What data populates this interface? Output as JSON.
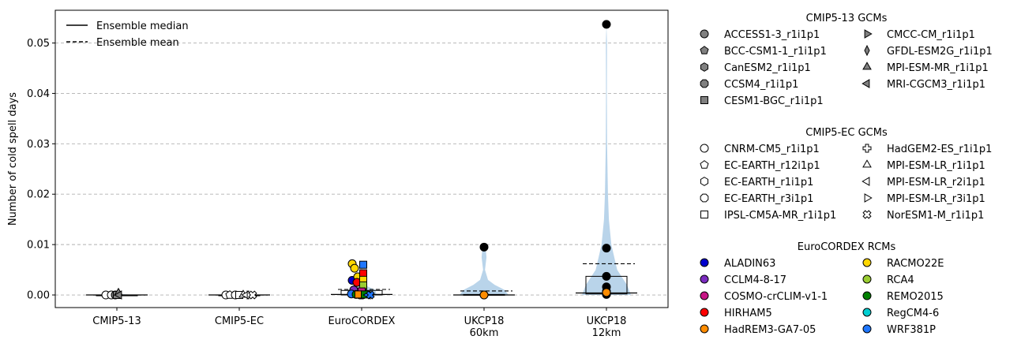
{
  "chart_data": {
    "type": "violin",
    "ylabel": "Number of cold spell days",
    "ylim": [
      -0.0025,
      0.0565
    ],
    "yticks": [
      0.0,
      0.01,
      0.02,
      0.03,
      0.04,
      0.05
    ],
    "ytick_labels": [
      "0.00",
      "0.01",
      "0.02",
      "0.03",
      "0.04",
      "0.05"
    ],
    "grid": "y-dashed",
    "categories": [
      {
        "label": [
          "CMIP5-13"
        ]
      },
      {
        "label": [
          "CMIP5-EC"
        ]
      },
      {
        "label": [
          "EuroCORDEX"
        ]
      },
      {
        "label": [
          "UKCP18",
          "60km"
        ]
      },
      {
        "label": [
          "UKCP18",
          "12km"
        ]
      }
    ],
    "violins": [
      {
        "category": 0,
        "profile": [
          [
            0,
            0.4
          ],
          [
            0.0002,
            0.0
          ]
        ]
      },
      {
        "category": 1,
        "profile": [
          [
            0,
            0.4
          ],
          [
            0.0002,
            0.0
          ]
        ]
      },
      {
        "category": 2,
        "profile": [
          [
            0,
            0.3
          ],
          [
            0.001,
            0.28
          ],
          [
            0.002,
            0.05
          ],
          [
            0.004,
            0.02
          ],
          [
            0.0062,
            0.0
          ]
        ]
      },
      {
        "category": 3,
        "profile": [
          [
            0,
            0.5
          ],
          [
            0.001,
            0.42
          ],
          [
            0.002,
            0.22
          ],
          [
            0.003,
            0.08
          ],
          [
            0.005,
            0.02
          ],
          [
            0.0075,
            0.05
          ],
          [
            0.0085,
            0.04
          ],
          [
            0.0095,
            0.0
          ]
        ]
      },
      {
        "category": 4,
        "profile": [
          [
            0,
            0.5
          ],
          [
            0.002,
            0.42
          ],
          [
            0.005,
            0.22
          ],
          [
            0.01,
            0.1
          ],
          [
            0.015,
            0.05
          ],
          [
            0.02,
            0.03
          ],
          [
            0.03,
            0.013
          ],
          [
            0.04,
            0.008
          ],
          [
            0.05,
            0.012
          ],
          [
            0.0535,
            0.0
          ]
        ]
      }
    ],
    "boxes": [
      {
        "category": 0,
        "q1": 0.0,
        "median": 0.0,
        "q3": 0.0,
        "mean": 0.0
      },
      {
        "category": 1,
        "q1": 0.0,
        "median": 0.0,
        "q3": 0.0,
        "mean": 0.0
      },
      {
        "category": 2,
        "q1": 0.0,
        "median": 0.0001,
        "q3": 0.0009,
        "mean": 0.0011
      },
      {
        "category": 3,
        "q1": 0.0,
        "median": 0.0,
        "q3": 0.0001,
        "mean": 0.0008
      },
      {
        "category": 4,
        "q1": 0.0002,
        "median": 0.0004,
        "q3": 0.0037,
        "mean": 0.0062
      }
    ],
    "points": [
      {
        "category": 0,
        "dx": -0.14,
        "y": 0.0,
        "marker": "circle",
        "color": "#ffffff"
      },
      {
        "category": 0,
        "dx": -0.07,
        "y": 0.0,
        "marker": "circle",
        "color": "#ffffff"
      },
      {
        "category": 0,
        "dx": -0.02,
        "y": 0.0,
        "marker": "circle",
        "color": "#808080"
      },
      {
        "category": 0,
        "dx": 0.0,
        "y": 0.0,
        "marker": "square",
        "color": "#808080"
      },
      {
        "category": 0,
        "dx": 0.02,
        "y": 0.0004,
        "marker": "triangle-up",
        "color": "#808080"
      },
      {
        "category": 0,
        "dx": 0.03,
        "y": 0.0,
        "marker": "triangle-left",
        "color": "#808080"
      },
      {
        "category": 1,
        "dx": -0.17,
        "y": 0.0,
        "marker": "circle",
        "color": "#ffffff"
      },
      {
        "category": 1,
        "dx": -0.12,
        "y": 0.0,
        "marker": "pentagon",
        "color": "#ffffff"
      },
      {
        "category": 1,
        "dx": -0.05,
        "y": 0.0,
        "marker": "circle",
        "color": "#ffffff"
      },
      {
        "category": 1,
        "dx": 0.0,
        "y": 0.0,
        "marker": "square",
        "color": "#ffffff"
      },
      {
        "category": 1,
        "dx": 0.05,
        "y": 0.0,
        "marker": "triangle-up",
        "color": "#ffffff"
      },
      {
        "category": 1,
        "dx": 0.09,
        "y": 0.0,
        "marker": "triangle-left",
        "color": "#ffffff"
      },
      {
        "category": 1,
        "dx": 0.13,
        "y": 0.0,
        "marker": "triangle-right",
        "color": "#ffffff"
      },
      {
        "category": 1,
        "dx": 0.17,
        "y": 0.0,
        "marker": "x-cross",
        "color": "#ffffff"
      },
      {
        "category": 2,
        "dx": -0.12,
        "y": 0.0062,
        "marker": "circle",
        "color": "#ffd700"
      },
      {
        "category": 2,
        "dx": -0.09,
        "y": 0.0053,
        "marker": "circle",
        "color": "#ffd700"
      },
      {
        "category": 2,
        "dx": -0.12,
        "y": 0.0029,
        "marker": "circle",
        "color": "#0000cd"
      },
      {
        "category": 2,
        "dx": -0.05,
        "y": 0.0036,
        "marker": "circle",
        "color": "#ffd700"
      },
      {
        "category": 2,
        "dx": -0.06,
        "y": 0.0025,
        "marker": "circle",
        "color": "#ff0000"
      },
      {
        "category": 2,
        "dx": -0.1,
        "y": 0.001,
        "marker": "circle",
        "color": "#7b2cbf"
      },
      {
        "category": 2,
        "dx": -0.13,
        "y": 0.0002,
        "marker": "circle",
        "color": "#1f77ff"
      },
      {
        "category": 2,
        "dx": -0.07,
        "y": 0.0001,
        "marker": "circle",
        "color": "#008000"
      },
      {
        "category": 2,
        "dx": -0.02,
        "y": 0.0,
        "marker": "circle",
        "color": "#9acd32"
      },
      {
        "category": 2,
        "dx": 0.01,
        "y": 0.0,
        "marker": "circle",
        "color": "#c71585"
      },
      {
        "category": 2,
        "dx": 0.02,
        "y": 0.006,
        "marker": "square",
        "color": "#1f77ff"
      },
      {
        "category": 2,
        "dx": 0.02,
        "y": 0.0043,
        "marker": "square",
        "color": "#ff0000"
      },
      {
        "category": 2,
        "dx": 0.02,
        "y": 0.003,
        "marker": "square",
        "color": "#ffd700"
      },
      {
        "category": 2,
        "dx": 0.02,
        "y": 0.0019,
        "marker": "square",
        "color": "#9acd32"
      },
      {
        "category": 2,
        "dx": 0.0,
        "y": 0.0007,
        "marker": "square",
        "color": "#c71585"
      },
      {
        "category": 2,
        "dx": -0.04,
        "y": 0.0001,
        "marker": "square",
        "color": "#ff8c00"
      },
      {
        "category": 2,
        "dx": 0.04,
        "y": 0.0001,
        "marker": "square",
        "color": "#008000"
      },
      {
        "category": 2,
        "dx": 0.08,
        "y": 0.0,
        "marker": "triangle-left",
        "color": "#1f77ff"
      },
      {
        "category": 2,
        "dx": 0.11,
        "y": 0.0,
        "marker": "x-cross",
        "color": "#1f77ff"
      },
      {
        "category": 3,
        "dx": 0.0,
        "y": 0.0095,
        "marker": "circle",
        "color": "#000000"
      },
      {
        "category": 3,
        "dx": 0.0,
        "y": 0.0,
        "marker": "circle",
        "color": "#000000"
      },
      {
        "category": 3,
        "dx": 0.0,
        "y": 0.0,
        "marker": "circle",
        "color": "#ff8c00"
      },
      {
        "category": 4,
        "dx": 0.0,
        "y": 0.0537,
        "marker": "circle",
        "color": "#000000"
      },
      {
        "category": 4,
        "dx": 0.0,
        "y": 0.0093,
        "marker": "circle",
        "color": "#000000"
      },
      {
        "category": 4,
        "dx": 0.0,
        "y": 0.0037,
        "marker": "circle",
        "color": "#000000"
      },
      {
        "category": 4,
        "dx": 0.0,
        "y": 0.0016,
        "marker": "circle",
        "color": "#000000"
      },
      {
        "category": 4,
        "dx": 0.0,
        "y": 0.0007,
        "marker": "circle",
        "color": "#000000"
      },
      {
        "category": 4,
        "dx": 0.0,
        "y": 0.0001,
        "marker": "circle",
        "color": "#000000"
      },
      {
        "category": 4,
        "dx": 0.0,
        "y": 0.0005,
        "marker": "circle",
        "color": "#ff8c00"
      }
    ],
    "inplot_legend": [
      {
        "label": "Ensemble median",
        "style": "solid"
      },
      {
        "label": "Ensemble mean",
        "style": "dashed"
      }
    ],
    "legend_groups": [
      {
        "title": "CMIP5-13 GCMs",
        "columns": [
          [
            {
              "label": "ACCESS1-3_r1i1p1",
              "marker": "circle",
              "color": "#808080"
            },
            {
              "label": "BCC-CSM1-1_r1i1p1",
              "marker": "pentagon",
              "color": "#808080"
            },
            {
              "label": "CanESM2_r1i1p1",
              "marker": "hexagon",
              "color": "#808080"
            },
            {
              "label": "CCSM4_r1i1p1",
              "marker": "octagon",
              "color": "#808080"
            },
            {
              "label": "CESM1-BGC_r1i1p1",
              "marker": "square",
              "color": "#808080"
            }
          ],
          [
            {
              "label": "CMCC-CM_r1i1p1",
              "marker": "triangle-right",
              "color": "#808080"
            },
            {
              "label": "GFDL-ESM2G_r1i1p1",
              "marker": "thin-diamond",
              "color": "#808080"
            },
            {
              "label": "MPI-ESM-MR_r1i1p1",
              "marker": "triangle-up",
              "color": "#808080"
            },
            {
              "label": "MRI-CGCM3_r1i1p1",
              "marker": "triangle-left",
              "color": "#808080"
            }
          ]
        ]
      },
      {
        "title": "CMIP5-EC GCMs",
        "columns": [
          [
            {
              "label": "CNRM-CM5_r1i1p1",
              "marker": "circle",
              "color": "#ffffff"
            },
            {
              "label": "EC-EARTH_r12i1p1",
              "marker": "pentagon",
              "color": "#ffffff"
            },
            {
              "label": "EC-EARTH_r1i1p1",
              "marker": "hexagon",
              "color": "#ffffff"
            },
            {
              "label": "EC-EARTH_r3i1p1",
              "marker": "octagon",
              "color": "#ffffff"
            },
            {
              "label": "IPSL-CM5A-MR_r1i1p1",
              "marker": "square",
              "color": "#ffffff"
            }
          ],
          [
            {
              "label": "HadGEM2-ES_r1i1p1",
              "marker": "plus-filled",
              "color": "#ffffff"
            },
            {
              "label": "MPI-ESM-LR_r1i1p1",
              "marker": "triangle-up",
              "color": "#ffffff"
            },
            {
              "label": "MPI-ESM-LR_r2i1p1",
              "marker": "triangle-left",
              "color": "#ffffff"
            },
            {
              "label": "MPI-ESM-LR_r3i1p1",
              "marker": "triangle-right",
              "color": "#ffffff"
            },
            {
              "label": "NorESM1-M_r1i1p1",
              "marker": "x-cross",
              "color": "#ffffff"
            }
          ]
        ]
      },
      {
        "title": "EuroCORDEX RCMs",
        "columns": [
          [
            {
              "label": "ALADIN63",
              "marker": "circle",
              "color": "#0000cd"
            },
            {
              "label": "CCLM4-8-17",
              "marker": "circle",
              "color": "#7b2cbf"
            },
            {
              "label": "COSMO-crCLIM-v1-1",
              "marker": "circle",
              "color": "#c71585"
            },
            {
              "label": "HIRHAM5",
              "marker": "circle",
              "color": "#ff0000"
            },
            {
              "label": "HadREM3-GA7-05",
              "marker": "circle",
              "color": "#ff8c00"
            }
          ],
          [
            {
              "label": "RACMO22E",
              "marker": "circle",
              "color": "#ffd700"
            },
            {
              "label": "RCA4",
              "marker": "circle",
              "color": "#9acd32"
            },
            {
              "label": "REMO2015",
              "marker": "circle",
              "color": "#008000"
            },
            {
              "label": "RegCM4-6",
              "marker": "circle",
              "color": "#00ced1"
            },
            {
              "label": "WRF381P",
              "marker": "circle",
              "color": "#1f77ff"
            }
          ]
        ]
      }
    ],
    "colors": {
      "violin": "#b9d4ea",
      "grid": "#b0b0b0",
      "axis": "#000000"
    }
  }
}
